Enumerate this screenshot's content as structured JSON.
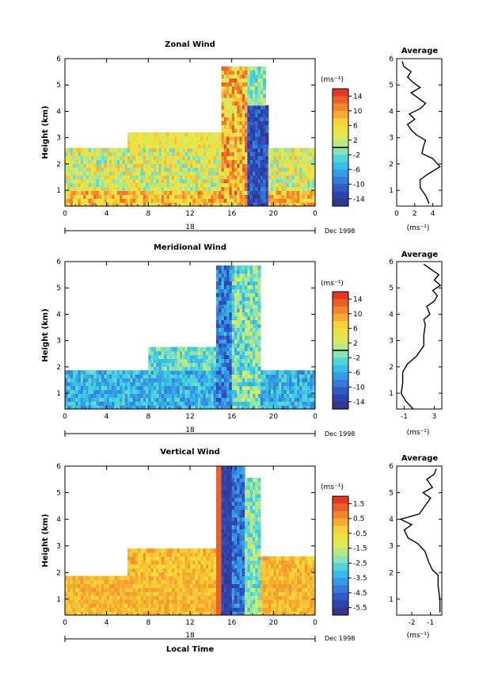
{
  "chart_data": [
    {
      "type": "heatmap",
      "title": "Zonal Wind",
      "ylabel": "Height (km)",
      "unit": "(ms⁻¹)",
      "x_ticks": [
        "0",
        "4",
        "8",
        "12",
        "16",
        "20",
        "0"
      ],
      "x_range": [
        0,
        24
      ],
      "y_ticks": [
        "1",
        "2",
        "3",
        "4",
        "5",
        "6"
      ],
      "y_range": [
        0.4,
        6.0
      ],
      "colorbar_ticks": [
        "14",
        "10",
        "6",
        "2",
        "-2",
        "-6",
        "-10",
        "-14"
      ],
      "colorbar_range": [
        -16,
        16
      ],
      "day_label": "18",
      "date_label": "Dec 1998",
      "profile": {
        "title": "Average",
        "xlabel": "(ms⁻¹)",
        "x_ticks": [
          "0",
          "2",
          "4"
        ],
        "x_range": [
          0,
          5
        ],
        "points": [
          [
            3.6,
            0.5
          ],
          [
            3.2,
            0.8
          ],
          [
            2.6,
            1.1
          ],
          [
            2.6,
            1.4
          ],
          [
            3.4,
            1.6
          ],
          [
            4.8,
            1.9
          ],
          [
            4.0,
            2.2
          ],
          [
            2.8,
            2.4
          ],
          [
            3.0,
            2.7
          ],
          [
            3.2,
            2.9
          ],
          [
            2.2,
            3.1
          ],
          [
            1.6,
            3.3
          ],
          [
            1.2,
            3.5
          ],
          [
            2.0,
            3.7
          ],
          [
            1.4,
            3.9
          ],
          [
            2.6,
            4.1
          ],
          [
            3.2,
            4.3
          ],
          [
            2.4,
            4.5
          ],
          [
            1.6,
            4.7
          ],
          [
            2.6,
            4.9
          ],
          [
            1.8,
            5.1
          ],
          [
            1.2,
            5.3
          ],
          [
            1.6,
            5.5
          ],
          [
            0.8,
            5.7
          ],
          [
            0.6,
            5.9
          ]
        ]
      }
    },
    {
      "type": "heatmap",
      "title": "Meridional Wind",
      "ylabel": "Height (km)",
      "unit": "(ms⁻¹)",
      "x_ticks": [
        "0",
        "4",
        "8",
        "12",
        "16",
        "20",
        "0"
      ],
      "x_range": [
        0,
        24
      ],
      "y_ticks": [
        "1",
        "2",
        "3",
        "4",
        "5",
        "6"
      ],
      "y_range": [
        0.4,
        6.0
      ],
      "colorbar_ticks": [
        "14",
        "10",
        "6",
        "2",
        "-2",
        "-6",
        "-10",
        "-14"
      ],
      "colorbar_range": [
        -16,
        16
      ],
      "day_label": "18",
      "date_label": "Dec 1998",
      "profile": {
        "title": "Average",
        "xlabel": "(ms⁻¹)",
        "x_ticks": [
          "-1",
          "3"
        ],
        "x_range": [
          -2,
          4
        ],
        "points": [
          [
            0.2,
            0.4
          ],
          [
            -0.8,
            0.7
          ],
          [
            -1.4,
            1.0
          ],
          [
            -1.2,
            1.4
          ],
          [
            -1.2,
            1.8
          ],
          [
            -0.6,
            2.1
          ],
          [
            0.6,
            2.4
          ],
          [
            1.6,
            2.8
          ],
          [
            1.6,
            3.2
          ],
          [
            1.8,
            3.6
          ],
          [
            1.6,
            3.8
          ],
          [
            2.4,
            4.0
          ],
          [
            2.0,
            4.3
          ],
          [
            3.0,
            4.5
          ],
          [
            3.4,
            4.7
          ],
          [
            2.8,
            4.9
          ],
          [
            3.8,
            5.1
          ],
          [
            3.0,
            5.3
          ],
          [
            3.6,
            5.5
          ],
          [
            2.6,
            5.7
          ],
          [
            1.6,
            5.9
          ]
        ]
      }
    },
    {
      "type": "heatmap",
      "title": "Vertical Wind",
      "ylabel": "Height (km)",
      "xlabel": "Local Time",
      "unit": "(ms⁻¹)",
      "x_ticks": [
        "0",
        "4",
        "8",
        "12",
        "16",
        "20",
        "0"
      ],
      "x_range": [
        0,
        24
      ],
      "y_ticks": [
        "1",
        "2",
        "3",
        "4",
        "5",
        "6"
      ],
      "y_range": [
        0.4,
        6.0
      ],
      "colorbar_ticks": [
        "1.5",
        "0.5",
        "-0.5",
        "-1.5",
        "-2.5",
        "-3.5",
        "-4.5",
        "-5.5"
      ],
      "colorbar_range": [
        -6,
        2
      ],
      "day_label": "18",
      "date_label": "Dec 1998",
      "profile": {
        "title": "Average",
        "xlabel": "(ms⁻¹)",
        "x_ticks": [
          "-2",
          "-1"
        ],
        "x_range": [
          -2.8,
          -0.4
        ],
        "points": [
          [
            -0.5,
            0.5
          ],
          [
            -0.5,
            1.0
          ],
          [
            -0.6,
            1.5
          ],
          [
            -0.6,
            1.9
          ],
          [
            -0.9,
            2.1
          ],
          [
            -1.1,
            2.4
          ],
          [
            -1.3,
            2.8
          ],
          [
            -1.7,
            3.1
          ],
          [
            -2.2,
            3.3
          ],
          [
            -2.4,
            3.6
          ],
          [
            -2.0,
            3.8
          ],
          [
            -2.6,
            4.0
          ],
          [
            -1.6,
            4.2
          ],
          [
            -1.3,
            4.5
          ],
          [
            -1.0,
            4.8
          ],
          [
            -1.4,
            5.0
          ],
          [
            -0.9,
            5.2
          ],
          [
            -1.2,
            5.5
          ],
          [
            -0.8,
            5.7
          ],
          [
            -0.7,
            5.9
          ]
        ]
      }
    }
  ]
}
